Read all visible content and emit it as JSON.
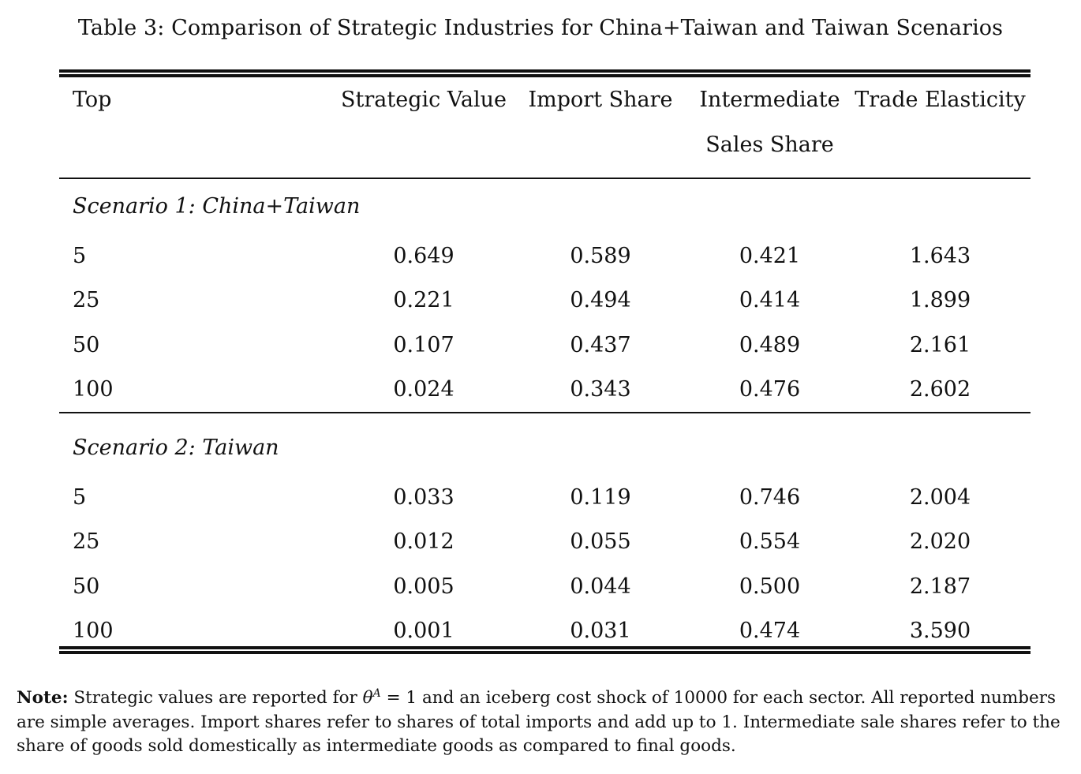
{
  "caption": "Table 3: Comparison of Strategic Industries for China+Taiwan and Taiwan Scenarios",
  "headers": {
    "top": "Top",
    "strategic_value": "Strategic Value",
    "import_share": "Import Share",
    "intermediate_line1": "Intermediate",
    "intermediate_line2": "Sales Share",
    "trade_elasticity": "Trade Elasticity"
  },
  "scenario1": {
    "label": "Scenario 1: China+Taiwan",
    "rows": [
      [
        "5",
        "0.649",
        "0.589",
        "0.421",
        "1.643"
      ],
      [
        "25",
        "0.221",
        "0.494",
        "0.414",
        "1.899"
      ],
      [
        "50",
        "0.107",
        "0.437",
        "0.489",
        "2.161"
      ],
      [
        "100",
        "0.024",
        "0.343",
        "0.476",
        "2.602"
      ]
    ]
  },
  "scenario2": {
    "label": "Scenario 2: Taiwan",
    "rows": [
      [
        "5",
        "0.033",
        "0.119",
        "0.746",
        "2.004"
      ],
      [
        "25",
        "0.012",
        "0.055",
        "0.554",
        "2.020"
      ],
      [
        "50",
        "0.005",
        "0.044",
        "0.500",
        "2.187"
      ],
      [
        "100",
        "0.001",
        "0.031",
        "0.474",
        "3.590"
      ]
    ]
  },
  "note": {
    "label": "Note:",
    "text_before_math": "Strategic values are reported for",
    "math_symbol": "θ",
    "math_superscript": "A",
    "math_rest": "= 1",
    "text_after_math": "and an iceberg cost shock of 10000 for each sector. All reported numbers are simple averages. Import shares refer to shares of total imports and add up to 1. Intermediate sale shares refer to the share of goods sold domestically as intermediate goods as compared to final goods."
  }
}
